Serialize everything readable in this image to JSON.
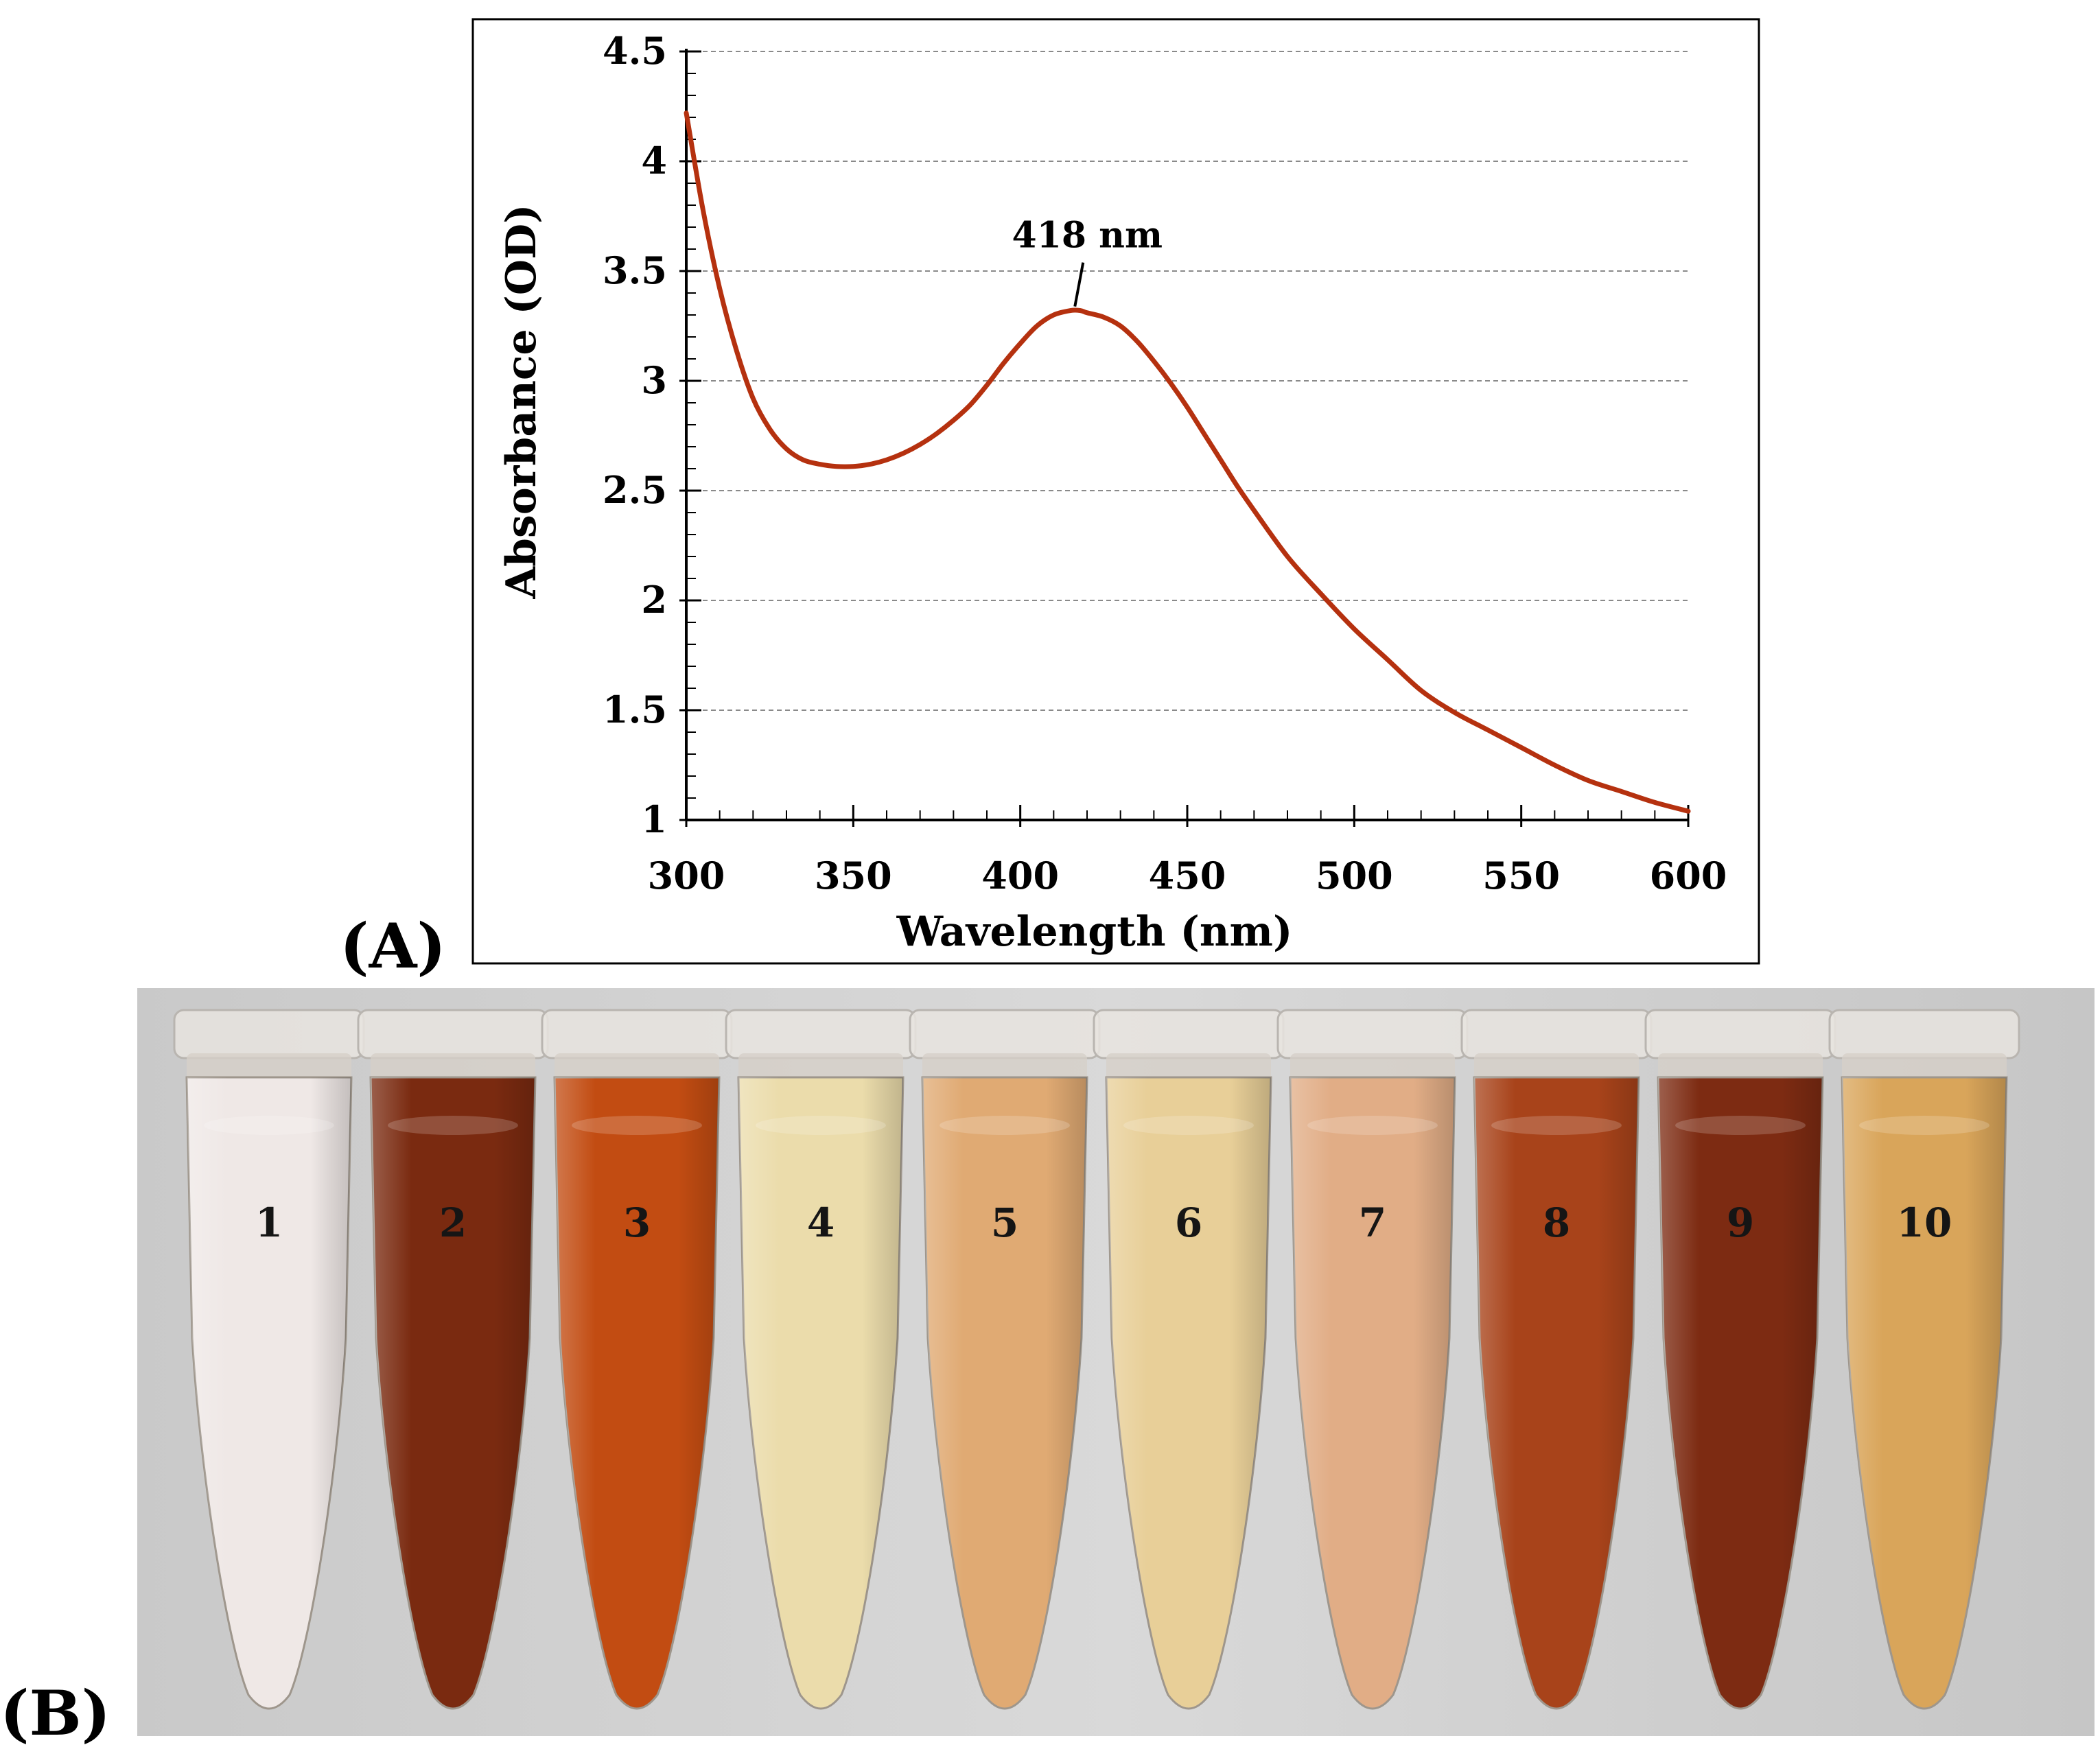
{
  "panel_a_label": "(A)",
  "panel_b_label": "(B)",
  "chart_data": {
    "type": "line",
    "title": "",
    "xlabel": "Wavelength (nm)",
    "ylabel": "Absorbance (OD)",
    "xlim": [
      300,
      600
    ],
    "ylim": [
      1,
      4.5
    ],
    "x_ticks": [
      300,
      350,
      400,
      450,
      500,
      550,
      600
    ],
    "x_tick_labels": [
      "300",
      "350",
      "400",
      "450",
      "500",
      "550",
      "600"
    ],
    "y_ticks": [
      1,
      1.5,
      2,
      2.5,
      3,
      3.5,
      4,
      4.5
    ],
    "y_tick_labels": [
      "1",
      "1.5",
      "2",
      "2.5",
      "3",
      "3.5",
      "4",
      "4.5"
    ],
    "grid": "horizontal-dashed",
    "series": [
      {
        "name": "Absorbance",
        "color": "#b5310f",
        "x": [
          300,
          305,
          310,
          315,
          320,
          325,
          330,
          335,
          340,
          345,
          350,
          355,
          360,
          365,
          370,
          375,
          380,
          385,
          390,
          395,
          400,
          405,
          410,
          415,
          418,
          420,
          425,
          430,
          435,
          440,
          445,
          450,
          455,
          460,
          465,
          470,
          480,
          490,
          500,
          510,
          520,
          530,
          540,
          550,
          560,
          570,
          580,
          590,
          600
        ],
        "y": [
          4.22,
          3.78,
          3.42,
          3.14,
          2.92,
          2.78,
          2.69,
          2.64,
          2.62,
          2.61,
          2.61,
          2.62,
          2.64,
          2.67,
          2.71,
          2.76,
          2.82,
          2.89,
          2.98,
          3.08,
          3.17,
          3.25,
          3.3,
          3.32,
          3.32,
          3.31,
          3.29,
          3.25,
          3.18,
          3.09,
          2.99,
          2.88,
          2.76,
          2.64,
          2.52,
          2.41,
          2.2,
          2.03,
          1.87,
          1.73,
          1.59,
          1.49,
          1.41,
          1.33,
          1.25,
          1.18,
          1.13,
          1.08,
          1.04
        ]
      }
    ],
    "annotations": [
      {
        "text": "418 nm",
        "x": 418,
        "y": 3.32
      }
    ]
  },
  "tubes": [
    {
      "label": "1",
      "color": "#efe8e6"
    },
    {
      "label": "2",
      "color": "#7a2a10"
    },
    {
      "label": "3",
      "color": "#c24c12"
    },
    {
      "label": "4",
      "color": "#ebdcab"
    },
    {
      "label": "5",
      "color": "#e0aa73"
    },
    {
      "label": "6",
      "color": "#e8cf98"
    },
    {
      "label": "7",
      "color": "#e1ad86"
    },
    {
      "label": "8",
      "color": "#a8431a"
    },
    {
      "label": "9",
      "color": "#7d2b12"
    },
    {
      "label": "10",
      "color": "#d9a55a"
    }
  ]
}
